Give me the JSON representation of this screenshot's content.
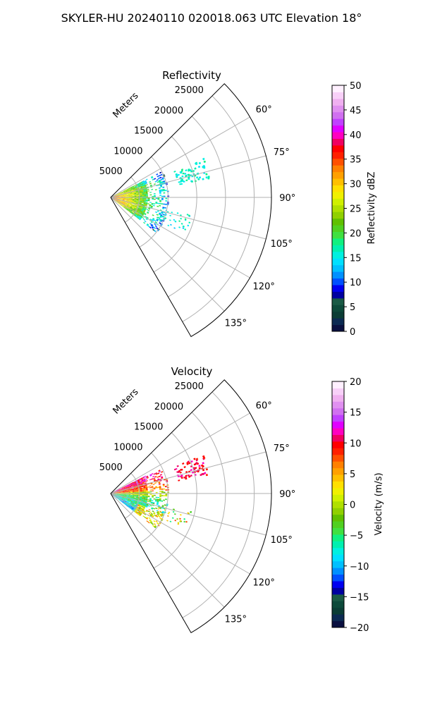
{
  "suptitle": "SKYLER-HU  20240110  020018.063 UTC Elevation 18°",
  "chart_data": [
    {
      "type": "heatmap",
      "subtype": "polar-sector",
      "title": "Reflectivity",
      "r_label": "Meters",
      "r_ticks": [
        5000,
        10000,
        15000,
        20000,
        25000
      ],
      "r_tick_labels": [
        "5000",
        "10000",
        "15000",
        "20000",
        "25000"
      ],
      "r_max": 28000,
      "theta_min": 45,
      "theta_max": 150,
      "theta_ticks": [
        60,
        75,
        90,
        105,
        120,
        135
      ],
      "theta_tick_labels": [
        "60°",
        "75°",
        "90°",
        "105°",
        "120°",
        "135°"
      ],
      "grid": true,
      "colorbar": {
        "label": "Reflectivity dBZ",
        "min": 0,
        "max": 50,
        "ticks": [
          0,
          5,
          10,
          15,
          20,
          25,
          30,
          35,
          40,
          45,
          50
        ],
        "tick_labels": [
          "0",
          "5",
          "10",
          "15",
          "20",
          "25",
          "30",
          "35",
          "40",
          "45",
          "50"
        ],
        "colors": [
          "#0a1040",
          "#0c2a52",
          "#0b3d35",
          "#0d4a3a",
          "#1a5a45",
          "#0000a0",
          "#0000f0",
          "#0050ff",
          "#0090ff",
          "#00c0ff",
          "#00e0ff",
          "#00f0e0",
          "#00f0b0",
          "#10f080",
          "#40e040",
          "#50d020",
          "#60c000",
          "#90d000",
          "#b0e000",
          "#d0f000",
          "#f0f000",
          "#ffe000",
          "#ffc000",
          "#ffa000",
          "#ff8000",
          "#ff5000",
          "#ff2000",
          "#ff0000",
          "#f00060",
          "#ff00c0",
          "#e000ff",
          "#c040ff",
          "#d070f0",
          "#e090f0",
          "#f0b0f0",
          "#f8d0f8",
          "#fff0ff"
        ]
      },
      "echo_description": "Radial echo band from origin out to about 8000–10000 m between roughly 65° and 125°, strongest (25–35 dBZ) near the radar, weaker (10–20 dBZ) outer cells; isolated echoes near 70°–80° at 15000–22000 m"
    },
    {
      "type": "heatmap",
      "subtype": "polar-sector",
      "title": "Velocity",
      "r_label": "Meters",
      "r_ticks": [
        5000,
        10000,
        15000,
        20000,
        25000
      ],
      "r_tick_labels": [
        "5000",
        "10000",
        "15000",
        "20000",
        "25000"
      ],
      "r_max": 28000,
      "theta_min": 45,
      "theta_max": 150,
      "theta_ticks": [
        60,
        75,
        90,
        105,
        120,
        135
      ],
      "theta_tick_labels": [
        "60°",
        "75°",
        "90°",
        "105°",
        "120°",
        "135°"
      ],
      "grid": true,
      "colorbar": {
        "label": "Velocity (m/s)",
        "min": -20,
        "max": 20,
        "ticks": [
          -20,
          -15,
          -10,
          -5,
          0,
          5,
          10,
          15,
          20
        ],
        "tick_labels": [
          "−20",
          "−15",
          "−10",
          "−5",
          "0",
          "5",
          "10",
          "15",
          "20"
        ],
        "colors": [
          "#0a1040",
          "#0c2a52",
          "#0b3d35",
          "#0d4a3a",
          "#1a5a45",
          "#0000a0",
          "#0000f0",
          "#0050ff",
          "#0090ff",
          "#00c0ff",
          "#00e0ff",
          "#00f0e0",
          "#00f0b0",
          "#10f080",
          "#40e040",
          "#50d020",
          "#60c000",
          "#90d000",
          "#b0e000",
          "#d0f000",
          "#f0f000",
          "#ffe000",
          "#ffc000",
          "#ffa000",
          "#ff8000",
          "#ff5000",
          "#ff2000",
          "#ff0000",
          "#f00060",
          "#ff00c0",
          "#e000ff",
          "#c040ff",
          "#d070f0",
          "#e090f0",
          "#f0b0f0",
          "#f8d0f8",
          "#fff0ff"
        ]
      },
      "echo_description": "Outbound velocities (+5 to +12 m/s) toward 60°–80°, inbound (−10 to −5 m/s) toward 100°–125°, near-zero along ~90°; distant echoes near 75° at about +10 m/s"
    }
  ]
}
